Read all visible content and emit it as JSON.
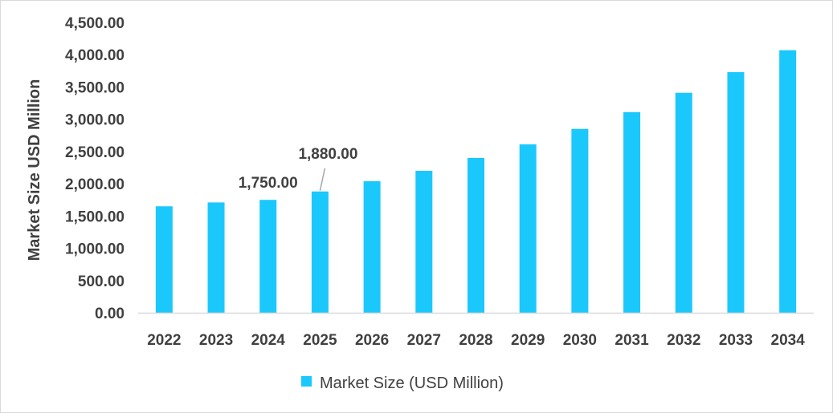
{
  "chart_data": {
    "type": "bar",
    "title": "",
    "xlabel": "",
    "ylabel": "Market Size USD Million",
    "ylim": [
      0,
      4500
    ],
    "yticks": [
      "0.00",
      "500.00",
      "1,000.00",
      "1,500.00",
      "2,000.00",
      "2,500.00",
      "3,000.00",
      "3,500.00",
      "4,000.00",
      "4,500.00"
    ],
    "categories": [
      "2022",
      "2023",
      "2024",
      "2025",
      "2026",
      "2027",
      "2028",
      "2029",
      "2030",
      "2031",
      "2032",
      "2033",
      "2034"
    ],
    "series": [
      {
        "name": "Market Size (USD Million)",
        "color": "#1BC8FC",
        "values": [
          1650,
          1710,
          1750,
          1880,
          2040,
          2200,
          2400,
          2610,
          2850,
          3110,
          3410,
          3730,
          4070
        ]
      }
    ],
    "data_labels": [
      {
        "category": "2024",
        "text": "1,750.00"
      },
      {
        "category": "2025",
        "text": "1,880.00"
      }
    ],
    "grid": false,
    "legend": "bottom"
  }
}
